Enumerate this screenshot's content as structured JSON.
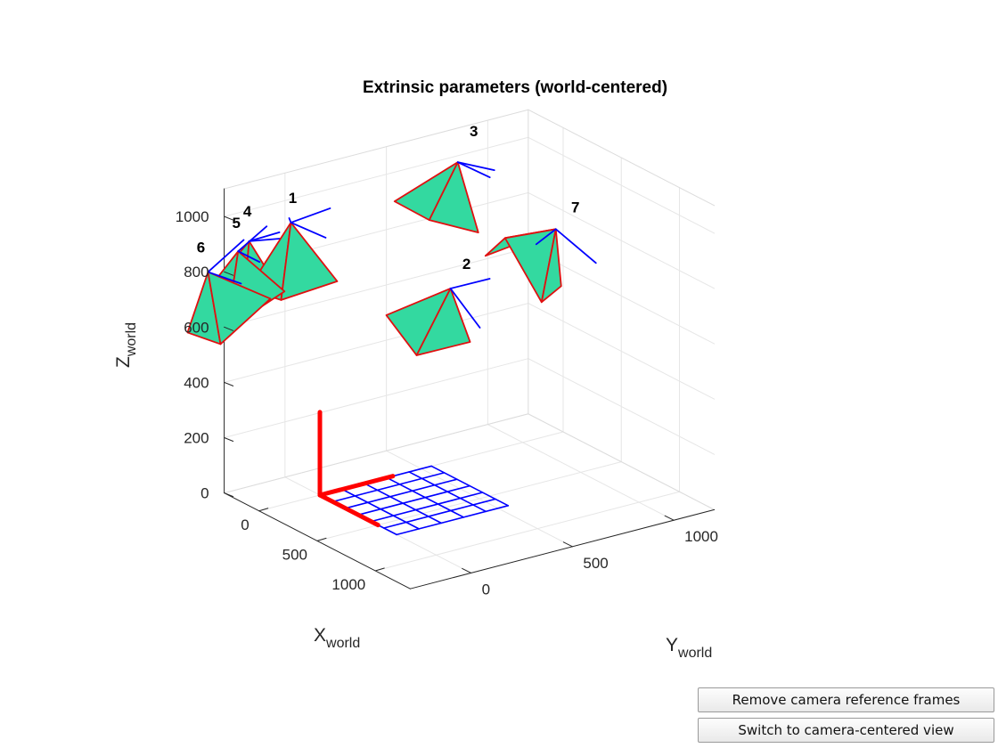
{
  "buttons": {
    "remove_frames": "Remove camera reference frames",
    "switch_view": "Switch to camera-centered view"
  },
  "chart_data": {
    "type": "3d-scatter",
    "title": "Extrinsic parameters (world-centered)",
    "xlabel": {
      "main": "X",
      "sub": "world"
    },
    "ylabel": {
      "main": "Y",
      "sub": "world"
    },
    "zlabel": {
      "main": "Z",
      "sub": "world"
    },
    "xlim": [
      -300,
      1300
    ],
    "ylim": [
      -300,
      1200
    ],
    "zlim": [
      0,
      1100
    ],
    "x_ticks": [
      "0",
      "500",
      "1000"
    ],
    "y_ticks": [
      "0",
      "500",
      "1000"
    ],
    "z_ticks": [
      "0",
      "200",
      "400",
      "600",
      "800",
      "1000"
    ],
    "grid": true,
    "colors": {
      "camera_fill": "#33d9a0",
      "camera_edge": "#e01010",
      "camera_axes": "#0000ff",
      "pattern_grid": "#0000ff",
      "world_axes": "#ff0000",
      "hidden_patch": "#ffee00"
    },
    "calibration_pattern": {
      "x_squares": 6,
      "y_squares": 5,
      "x_extent": 660,
      "y_extent": 550
    },
    "cameras": [
      {
        "id": "1",
        "x": -40,
        "y": -120,
        "z": 1000
      },
      {
        "id": "2",
        "x": 600,
        "y": 300,
        "z": 820
      },
      {
        "id": "3",
        "x": 140,
        "y": 600,
        "z": 1120
      },
      {
        "id": "4",
        "x": -260,
        "y": -200,
        "z": 900
      },
      {
        "id": "5",
        "x": -180,
        "y": -300,
        "z": 900
      },
      {
        "id": "6",
        "x": -160,
        "y": -460,
        "z": 860
      },
      {
        "id": "7",
        "x": 460,
        "y": 900,
        "z": 890
      }
    ]
  }
}
